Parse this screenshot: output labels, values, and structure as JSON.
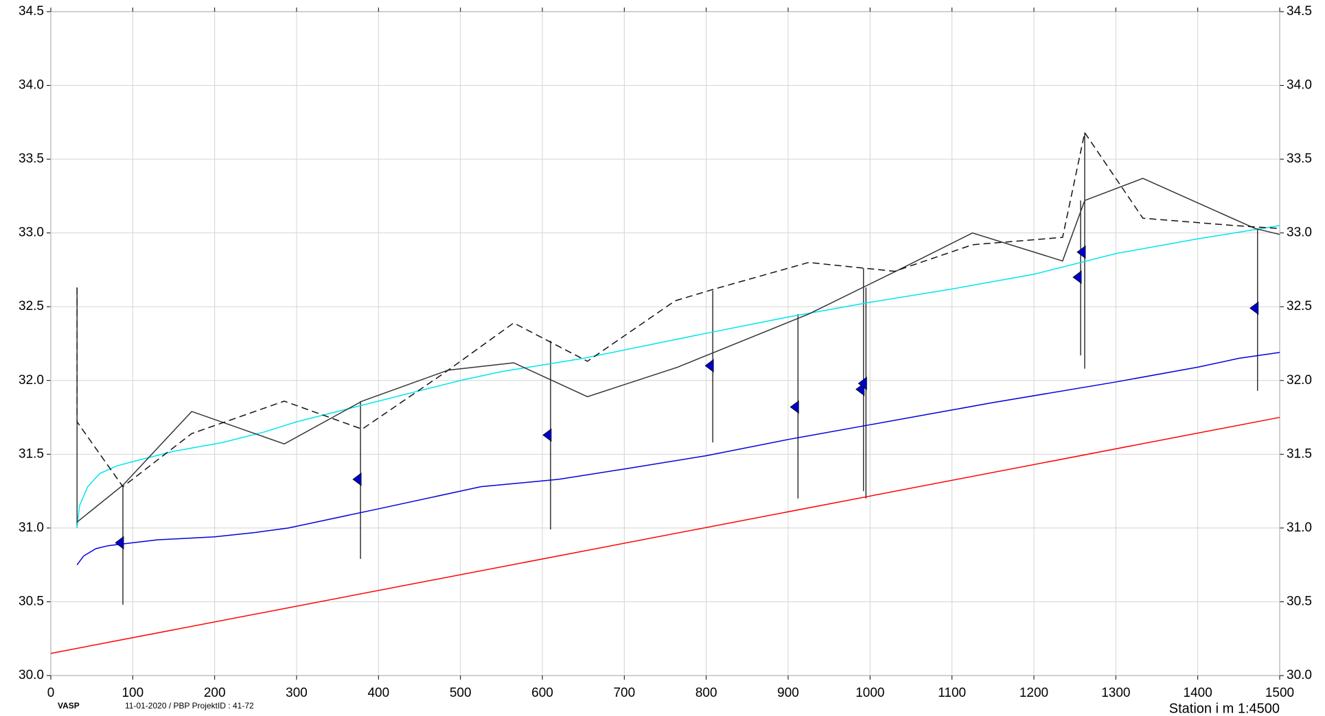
{
  "chart_data": {
    "type": "line",
    "xlim": [
      0,
      1500
    ],
    "ylim": [
      30,
      34.5
    ],
    "xticks": [
      0,
      100,
      200,
      300,
      400,
      500,
      600,
      700,
      800,
      900,
      1000,
      1100,
      1200,
      1300,
      1400,
      1500
    ],
    "yticks": [
      {
        "value": 30,
        "label": "30.0"
      },
      {
        "value": 30.5,
        "label": "30.5"
      },
      {
        "value": 31,
        "label": "31.0"
      },
      {
        "value": 31.5,
        "label": "31.5"
      },
      {
        "value": 32,
        "label": "32.0"
      },
      {
        "value": 32.5,
        "label": "32.5"
      },
      {
        "value": 33,
        "label": "33.0"
      },
      {
        "value": 33.5,
        "label": "33.5"
      },
      {
        "value": 34,
        "label": "34.0"
      },
      {
        "value": 34.5,
        "label": "34.5"
      }
    ],
    "grid": true,
    "x_label": "Station i m  1:4500",
    "footer_left": "VASP",
    "footer_mid": "11-01-2020 / PBP   ProjektID : 41-72",
    "series": [
      {
        "color": "#ff0000",
        "dash": false,
        "x": [
          0,
          1500
        ],
        "values": [
          30.15,
          31.75
        ]
      },
      {
        "color": "#0000dd",
        "dash": false,
        "x": [
          32,
          40,
          55,
          70,
          85,
          130,
          200,
          250,
          290,
          400,
          500,
          525,
          620,
          700,
          800,
          900,
          1000,
          1100,
          1150,
          1300,
          1400,
          1450,
          1500
        ],
        "values": [
          30.75,
          30.81,
          30.86,
          30.88,
          30.89,
          30.92,
          30.94,
          30.97,
          31.0,
          31.13,
          31.25,
          31.28,
          31.33,
          31.4,
          31.49,
          31.6,
          31.7,
          31.8,
          31.85,
          31.99,
          32.09,
          32.15,
          32.19
        ]
      },
      {
        "color": "#00e5ee",
        "dash": false,
        "x": [
          32,
          35,
          45,
          60,
          80,
          100,
          150,
          210,
          260,
          300,
          400,
          500,
          550,
          650,
          800,
          900,
          1000,
          1100,
          1200,
          1300,
          1400,
          1500
        ],
        "values": [
          31.0,
          31.15,
          31.28,
          31.37,
          31.42,
          31.45,
          31.52,
          31.58,
          31.65,
          31.72,
          31.86,
          32.0,
          32.06,
          32.15,
          32.32,
          32.43,
          32.53,
          32.62,
          32.72,
          32.86,
          32.96,
          33.05
        ]
      },
      {
        "color": "#333333",
        "dash": false,
        "x": [
          32,
          88,
          172,
          285,
          380,
          485,
          565,
          655,
          765,
          925,
          1035,
          1125,
          1235,
          1262,
          1333,
          1470,
          1500
        ],
        "values": [
          31.04,
          31.29,
          31.79,
          31.57,
          31.86,
          32.07,
          32.12,
          31.89,
          32.09,
          32.45,
          32.75,
          33.0,
          32.81,
          33.22,
          33.37,
          33.03,
          32.99
        ]
      },
      {
        "color": "#111111",
        "dash": true,
        "x": [
          32,
          32,
          88,
          172,
          285,
          380,
          480,
          565,
          655,
          762,
          810,
          925,
          1030,
          1125,
          1235,
          1262,
          1333,
          1445,
          1500
        ],
        "values": [
          32.63,
          31.72,
          31.28,
          31.64,
          31.86,
          31.67,
          32.05,
          32.39,
          32.13,
          32.54,
          32.62,
          32.8,
          32.74,
          32.92,
          32.97,
          33.68,
          33.1,
          33.05,
          33.03
        ]
      }
    ],
    "wells": {
      "color": "#0000cc",
      "x": [
        32,
        88,
        378,
        610,
        808,
        912,
        992,
        995,
        1257,
        1262,
        1473
      ],
      "top": [
        32.63,
        31.28,
        31.86,
        32.27,
        32.61,
        32.45,
        32.76,
        32.63,
        33.22,
        33.68,
        33.03
      ],
      "bottom": [
        31.0,
        30.48,
        30.79,
        30.99,
        31.58,
        31.2,
        31.25,
        31.2,
        32.17,
        32.08,
        31.93
      ],
      "level": [
        null,
        30.9,
        31.33,
        31.63,
        32.1,
        31.82,
        31.94,
        31.98,
        32.7,
        32.87,
        32.49
      ]
    }
  }
}
